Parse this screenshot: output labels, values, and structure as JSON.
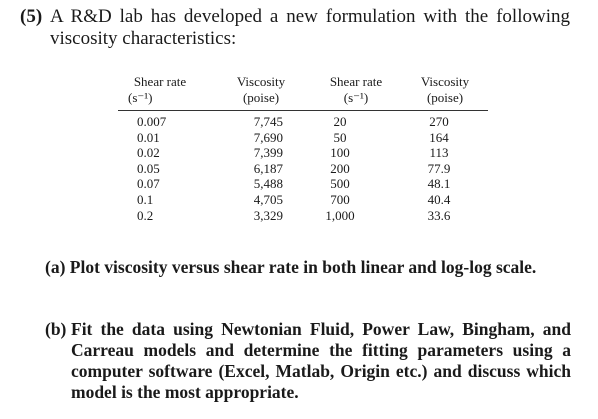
{
  "problem": {
    "number": "(5)",
    "line1": "A R&D lab has developed a new formulation with the following",
    "line2": "viscosity characteristics:"
  },
  "table": {
    "headers": [
      {
        "top": "Shear rate",
        "bottom": "(s⁻¹)"
      },
      {
        "top": "Viscosity",
        "bottom": "(poise)"
      },
      {
        "top": "Shear rate",
        "bottom": "(s⁻¹)"
      },
      {
        "top": "Viscosity",
        "bottom": "(poise)"
      }
    ],
    "columns": [
      [
        "0.007",
        "0.01",
        "0.02",
        "0.05",
        "0.07",
        "0.1",
        "0.2"
      ],
      [
        "7,745",
        "7,690",
        "7,399",
        "6,187",
        "5,488",
        "4,705",
        "3,329"
      ],
      [
        "20",
        "50",
        "100",
        "200",
        "500",
        "700",
        "1,000"
      ],
      [
        "270",
        "164",
        "113",
        "77.9",
        "48.1",
        "40.4",
        "33.6"
      ]
    ]
  },
  "part_a": "(a) Plot viscosity versus shear rate in both linear and log-log scale.",
  "part_b": {
    "label": "(b)",
    "text": "Fit the data using Newtonian Fluid, Power Law, Bingham, and Carreau models and determine the fitting parameters using a computer software (Excel, Matlab, Origin etc.) and discuss which model is the most appropriate."
  }
}
